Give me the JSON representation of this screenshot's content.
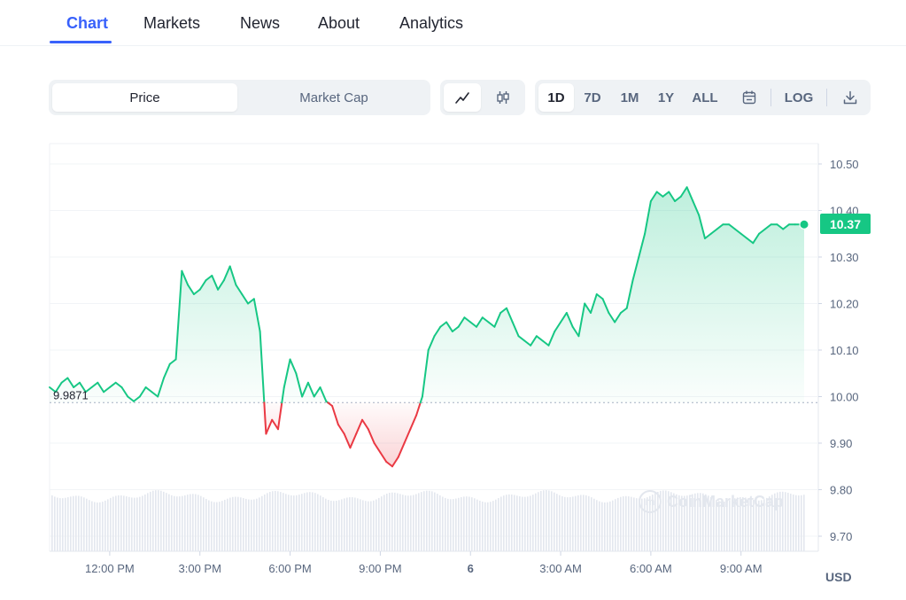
{
  "nav": {
    "tabs": [
      {
        "label": "Chart",
        "active": true
      },
      {
        "label": "Markets",
        "active": false
      },
      {
        "label": "News",
        "active": false
      },
      {
        "label": "About",
        "active": false
      },
      {
        "label": "Analytics",
        "active": false
      }
    ]
  },
  "toolbar": {
    "type_toggle": {
      "price": "Price",
      "market_cap": "Market Cap",
      "selected": "Price"
    },
    "chart_style": {
      "line_icon": "line-chart-icon",
      "candle_icon": "candlestick-icon",
      "selected": "line"
    },
    "ranges": [
      "1D",
      "7D",
      "1M",
      "1Y",
      "ALL"
    ],
    "selected_range": "1D",
    "calendar_icon": "calendar-icon",
    "log_label": "LOG",
    "download_icon": "download-icon"
  },
  "colors": {
    "accent": "#3861fb",
    "up": "#16c784",
    "down": "#ea3943"
  },
  "current_price": "10.37",
  "reference_price": "9.9871",
  "currency": "USD",
  "watermark": "CoinMarketCap",
  "chart_data": {
    "type": "line",
    "ylim": [
      9.65,
      10.55
    ],
    "y_ticks": [
      "10.50",
      "10.40",
      "10.30",
      "10.20",
      "10.10",
      "10.00",
      "9.90",
      "9.80",
      "9.70"
    ],
    "y_tick_values": [
      10.5,
      10.4,
      10.3,
      10.2,
      10.1,
      10.0,
      9.9,
      9.8,
      9.7
    ],
    "x_ticks": [
      {
        "label": "12:00 PM",
        "t": 12.0
      },
      {
        "label": "3:00 PM",
        "t": 15.0
      },
      {
        "label": "6:00 PM",
        "t": 18.0
      },
      {
        "label": "9:00 PM",
        "t": 21.0
      },
      {
        "label": "6",
        "t": 24.0
      },
      {
        "label": "3:00 AM",
        "t": 27.0
      },
      {
        "label": "6:00 AM",
        "t": 30.0
      },
      {
        "label": "9:00 AM",
        "t": 33.0
      }
    ],
    "t_range": [
      10.0,
      35.1
    ],
    "baseline": 9.9871,
    "t": [
      10.0,
      10.2,
      10.4,
      10.6,
      10.8,
      11.0,
      11.2,
      11.4,
      11.6,
      11.8,
      12.0,
      12.2,
      12.4,
      12.6,
      12.8,
      13.0,
      13.2,
      13.4,
      13.6,
      13.8,
      14.0,
      14.2,
      14.4,
      14.6,
      14.8,
      15.0,
      15.2,
      15.4,
      15.6,
      15.8,
      16.0,
      16.2,
      16.4,
      16.6,
      16.8,
      17.0,
      17.2,
      17.4,
      17.6,
      17.8,
      18.0,
      18.2,
      18.4,
      18.6,
      18.8,
      19.0,
      19.2,
      19.4,
      19.6,
      19.8,
      20.0,
      20.2,
      20.4,
      20.6,
      20.8,
      21.0,
      21.2,
      21.4,
      21.6,
      21.8,
      22.0,
      22.2,
      22.4,
      22.6,
      22.8,
      23.0,
      23.2,
      23.4,
      23.6,
      23.8,
      24.0,
      24.2,
      24.4,
      24.6,
      24.8,
      25.0,
      25.2,
      25.4,
      25.6,
      25.8,
      26.0,
      26.2,
      26.4,
      26.6,
      26.8,
      27.0,
      27.2,
      27.4,
      27.6,
      27.8,
      28.0,
      28.2,
      28.4,
      28.6,
      28.8,
      29.0,
      29.2,
      29.4,
      29.6,
      29.8,
      30.0,
      30.2,
      30.4,
      30.6,
      30.8,
      31.0,
      31.2,
      31.4,
      31.6,
      31.8,
      32.0,
      32.2,
      32.4,
      32.6,
      32.8,
      33.0,
      33.2,
      33.4,
      33.6,
      33.8,
      34.0,
      34.2,
      34.4,
      34.6,
      34.8,
      35.0,
      35.1
    ],
    "values": [
      10.02,
      10.01,
      10.03,
      10.04,
      10.02,
      10.03,
      10.01,
      10.02,
      10.03,
      10.01,
      10.02,
      10.03,
      10.02,
      10.0,
      9.99,
      10.0,
      10.02,
      10.01,
      10.0,
      10.04,
      10.07,
      10.08,
      10.27,
      10.24,
      10.22,
      10.23,
      10.25,
      10.26,
      10.23,
      10.25,
      10.28,
      10.24,
      10.22,
      10.2,
      10.21,
      10.14,
      9.92,
      9.95,
      9.93,
      10.02,
      10.08,
      10.05,
      10.0,
      10.03,
      10.0,
      10.02,
      9.99,
      9.98,
      9.94,
      9.92,
      9.89,
      9.92,
      9.95,
      9.93,
      9.9,
      9.88,
      9.86,
      9.85,
      9.87,
      9.9,
      9.93,
      9.96,
      10.0,
      10.1,
      10.13,
      10.15,
      10.16,
      10.14,
      10.15,
      10.17,
      10.16,
      10.15,
      10.17,
      10.16,
      10.15,
      10.18,
      10.19,
      10.16,
      10.13,
      10.12,
      10.11,
      10.13,
      10.12,
      10.11,
      10.14,
      10.16,
      10.18,
      10.15,
      10.13,
      10.2,
      10.18,
      10.22,
      10.21,
      10.18,
      10.16,
      10.18,
      10.19,
      10.25,
      10.3,
      10.35,
      10.42,
      10.44,
      10.43,
      10.44,
      10.42,
      10.43,
      10.45,
      10.42,
      10.39,
      10.34,
      10.35,
      10.36,
      10.37,
      10.37,
      10.36,
      10.35,
      10.34,
      10.33,
      10.35,
      10.36,
      10.37,
      10.37,
      10.36,
      10.37,
      10.37,
      10.37,
      10.37
    ]
  }
}
